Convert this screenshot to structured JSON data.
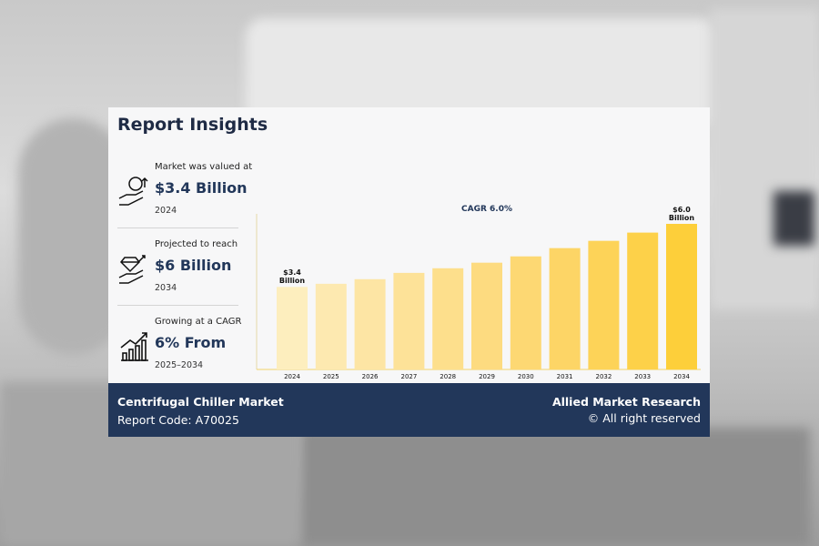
{
  "header": {
    "title": "Report Insights"
  },
  "insights": [
    {
      "label": "Market was valued at",
      "value": "$3.4 Billion",
      "period": "2024"
    },
    {
      "label": "Projected to reach",
      "value": "$6 Billion",
      "period": "2034"
    },
    {
      "label": "Growing at a CAGR",
      "value": "6% From",
      "period": "2025–2034"
    }
  ],
  "chart_data": {
    "type": "bar",
    "annotation": "CAGR 6.0%",
    "categories": [
      "2024",
      "2025",
      "2026",
      "2027",
      "2028",
      "2029",
      "2030",
      "2031",
      "2032",
      "2033",
      "2034"
    ],
    "values": [
      3.4,
      3.53,
      3.72,
      3.98,
      4.17,
      4.4,
      4.66,
      5.0,
      5.3,
      5.64,
      6.0
    ],
    "value_labels": [
      "$3.4 Billion",
      null,
      null,
      null,
      null,
      null,
      null,
      null,
      null,
      null,
      "$6.0 Billion"
    ],
    "colors": [
      "#fdeebe",
      "#fde9b0",
      "#fde5a4",
      "#fde298",
      "#fddf8c",
      "#fddb80",
      "#fdd873",
      "#fdd566",
      "#fdd358",
      "#fdd149",
      "#fdcf3a"
    ]
  },
  "footer": {
    "market": "Centrifugal Chiller Market",
    "code": "Report Code: A70025",
    "brand": "Allied Market Research",
    "rights": "© All right reserved"
  }
}
